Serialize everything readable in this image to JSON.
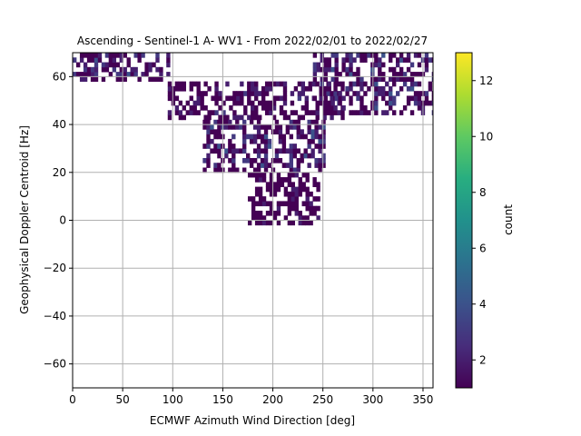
{
  "chart_data": {
    "type": "heatmap",
    "title": "Ascending - Sentinel-1 A- WV1 - From 2022/02/01 to 2022/02/27",
    "xlabel": "ECMWF Azimuth Wind Direction [deg]",
    "ylabel": "Geophysical Doppler Centroid [Hz]",
    "xlim": [
      0,
      360
    ],
    "ylim": [
      -70,
      70
    ],
    "xticks": [
      0,
      50,
      100,
      150,
      200,
      250,
      300,
      350
    ],
    "yticks": [
      -60,
      -40,
      -20,
      0,
      20,
      40,
      60
    ],
    "xtick_labels": [
      "0",
      "50",
      "100",
      "150",
      "200",
      "250",
      "300",
      "350"
    ],
    "ytick_labels": [
      "−60",
      "−40",
      "−20",
      "0",
      "20",
      "40",
      "60"
    ],
    "grid": true,
    "colormap": "viridis",
    "colorbar": {
      "label": "count",
      "range": [
        1,
        13
      ],
      "ticks": [
        2,
        4,
        6,
        8,
        10,
        12
      ],
      "tick_labels": [
        "2",
        "4",
        "6",
        "8",
        "10",
        "12"
      ]
    },
    "bin_width_deg": 3.6,
    "bin_height_hz": 2,
    "density_regions": [
      {
        "x": [
          0,
          95
        ],
        "y": [
          58,
          70
        ],
        "peak_count": 4
      },
      {
        "x": [
          95,
          270
        ],
        "y": [
          42,
          58
        ],
        "peak_count": 3
      },
      {
        "x": [
          130,
          250
        ],
        "y": [
          20,
          42
        ],
        "peak_count": 4
      },
      {
        "x": [
          240,
          360
        ],
        "y": [
          44,
          70
        ],
        "peak_count": 4
      },
      {
        "x": [
          175,
          245
        ],
        "y": [
          -2,
          20
        ],
        "peak_count": 2
      }
    ]
  },
  "colors": {
    "viridis_low": "#440154",
    "viridis_mid": "#21918c",
    "viridis_high": "#fde725",
    "grid": "#b0b0b0",
    "axes": "#000000"
  }
}
